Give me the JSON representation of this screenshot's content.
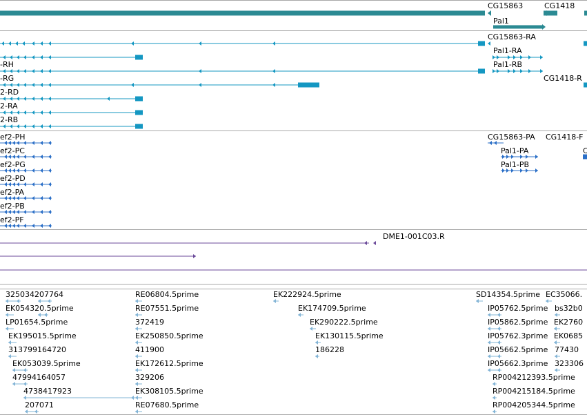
{
  "colors": {
    "gene": "#2b8a93",
    "transcript": "#1497c2",
    "protein": "#2b6fc7",
    "repeat": "#6b4a9a",
    "est": "#82b4d6",
    "separator": "#a8a8a8"
  },
  "gene_track": {
    "labels": [
      "CG15863",
      "CG1418",
      "Pal1"
    ]
  },
  "transcript_track": {
    "labels": [
      "CG15863-RA",
      "Pal1-RA",
      "-RH",
      "Pal1-RB",
      "-RG",
      "CG1418-R",
      "2-RD",
      "2-RA",
      "2-RB"
    ]
  },
  "protein_track": {
    "labels": [
      "ef2-PH",
      "CG15863-PA",
      "CG1418-F",
      "ef2-PC",
      "Pal1-PA",
      "ef2-PG",
      "Pal1-PB",
      "ef2-PD",
      "ef2-PA",
      "ef2-PB",
      "ef2-PF",
      "C"
    ]
  },
  "repeat_track": {
    "labels": [
      "DME1-001C03.R"
    ]
  },
  "est_track": {
    "labels": [
      "325034207764",
      "RE06804.5prime",
      "EK222924.5prime",
      "SD14354.5prime",
      "EC35066.",
      "EK054320.5prime",
      "RE07551.5prime",
      "EK174709.5prime",
      "IP05762.5prime",
      "bs32b0",
      "LP01654.5prime",
      "372419",
      "EK290222.5prime",
      "IP05862.5prime",
      "EK2760",
      "EK195015.5prime",
      "EK250850.5prime",
      "EK130115.5prime",
      "IP05762.3prime",
      "EK0685",
      "313799164720",
      "411900",
      "186228",
      "IP05662.5prime",
      "77430",
      "EK053039.5prime",
      "EK172612.5prime",
      "IP05662.3prime",
      "323306",
      "47994164057",
      "329206",
      "RP004212393.5prime",
      "4738417923",
      "EK308105.5prime",
      "RP004215184.5prime",
      "207071",
      "RE07680.5prime",
      "RP004205344.5prime"
    ]
  }
}
